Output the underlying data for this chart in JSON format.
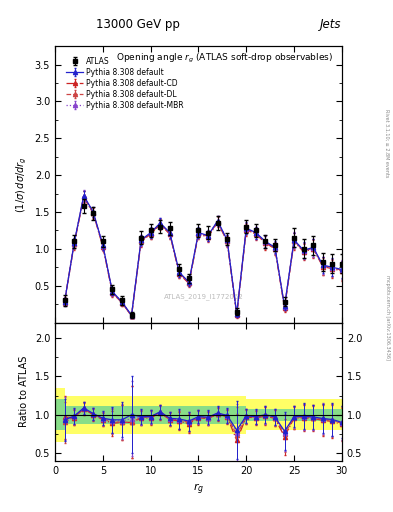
{
  "title_top": "13000 GeV pp",
  "title_right": "Jets",
  "plot_title": "Opening angle $r_g$ (ATLAS soft-drop observables)",
  "ylabel_main": "$(1/\\sigma)\\,d\\sigma/dr_g$",
  "ylabel_ratio": "Ratio to ATLAS",
  "xlabel": "$r_g$",
  "watermark": "ATLAS_2019_I1772062",
  "right_label": "mcplots.cern.ch [arXiv:1306.3436]",
  "rivet_label": "Rivet 3.1.10; ≥ 2.8M events",
  "xdata": [
    1,
    2,
    3,
    4,
    5,
    6,
    7,
    8,
    9,
    10,
    11,
    12,
    13,
    14,
    15,
    16,
    17,
    18,
    19,
    20,
    21,
    22,
    23,
    24,
    25,
    26,
    27,
    28,
    29,
    30
  ],
  "atlas_y": [
    0.3,
    1.1,
    1.58,
    1.48,
    1.1,
    0.45,
    0.3,
    0.1,
    1.15,
    1.25,
    1.3,
    1.28,
    0.72,
    0.6,
    1.25,
    1.22,
    1.35,
    1.13,
    0.15,
    1.3,
    1.25,
    1.1,
    1.05,
    0.28,
    1.15,
    1.0,
    1.05,
    0.82,
    0.8,
    0.8
  ],
  "atlas_yerr": [
    0.07,
    0.09,
    0.09,
    0.09,
    0.08,
    0.06,
    0.06,
    0.04,
    0.09,
    0.09,
    0.09,
    0.09,
    0.07,
    0.06,
    0.09,
    0.09,
    0.09,
    0.08,
    0.05,
    0.09,
    0.09,
    0.09,
    0.08,
    0.06,
    0.13,
    0.13,
    0.13,
    0.12,
    0.13,
    0.13
  ],
  "default_y": [
    0.28,
    1.08,
    1.72,
    1.5,
    1.05,
    0.42,
    0.28,
    0.1,
    1.12,
    1.22,
    1.35,
    1.22,
    0.68,
    0.55,
    1.22,
    1.18,
    1.38,
    1.12,
    0.12,
    1.28,
    1.22,
    1.1,
    1.02,
    0.22,
    1.12,
    0.98,
    1.02,
    0.78,
    0.75,
    0.72
  ],
  "default_yerr": [
    0.05,
    0.07,
    0.07,
    0.07,
    0.06,
    0.05,
    0.04,
    0.03,
    0.07,
    0.07,
    0.07,
    0.07,
    0.06,
    0.05,
    0.07,
    0.07,
    0.07,
    0.07,
    0.04,
    0.08,
    0.08,
    0.08,
    0.08,
    0.05,
    0.1,
    0.11,
    0.11,
    0.11,
    0.12,
    0.12
  ],
  "cd_y": [
    0.29,
    1.06,
    1.7,
    1.48,
    1.03,
    0.4,
    0.27,
    0.09,
    1.1,
    1.2,
    1.33,
    1.2,
    0.66,
    0.53,
    1.2,
    1.16,
    1.36,
    1.1,
    0.1,
    1.26,
    1.2,
    1.08,
    1.0,
    0.2,
    1.1,
    0.96,
    1.0,
    0.76,
    0.73,
    0.7
  ],
  "cd_yerr": [
    0.05,
    0.07,
    0.08,
    0.07,
    0.06,
    0.05,
    0.04,
    0.03,
    0.07,
    0.07,
    0.07,
    0.07,
    0.06,
    0.05,
    0.07,
    0.07,
    0.07,
    0.07,
    0.04,
    0.08,
    0.08,
    0.09,
    0.08,
    0.05,
    0.11,
    0.11,
    0.12,
    0.12,
    0.12,
    0.13
  ],
  "dl_y": [
    0.27,
    1.07,
    1.71,
    1.49,
    1.04,
    0.41,
    0.27,
    0.09,
    1.11,
    1.21,
    1.34,
    1.21,
    0.67,
    0.54,
    1.21,
    1.17,
    1.37,
    1.11,
    0.11,
    1.27,
    1.21,
    1.09,
    1.01,
    0.21,
    1.11,
    0.97,
    1.01,
    0.77,
    0.74,
    0.71
  ],
  "dl_yerr": [
    0.05,
    0.07,
    0.08,
    0.07,
    0.06,
    0.05,
    0.04,
    0.03,
    0.07,
    0.07,
    0.07,
    0.07,
    0.06,
    0.05,
    0.07,
    0.07,
    0.07,
    0.07,
    0.04,
    0.08,
    0.08,
    0.09,
    0.08,
    0.05,
    0.11,
    0.11,
    0.12,
    0.12,
    0.12,
    0.13
  ],
  "mbr_y": [
    0.285,
    1.075,
    1.715,
    1.495,
    1.045,
    0.415,
    0.275,
    0.095,
    1.115,
    1.215,
    1.345,
    1.215,
    0.675,
    0.545,
    1.215,
    1.175,
    1.375,
    1.115,
    0.115,
    1.275,
    1.215,
    1.095,
    1.015,
    0.215,
    1.115,
    0.975,
    1.015,
    0.775,
    0.745,
    0.715
  ],
  "mbr_yerr": [
    0.05,
    0.07,
    0.08,
    0.07,
    0.06,
    0.05,
    0.04,
    0.03,
    0.07,
    0.07,
    0.07,
    0.07,
    0.06,
    0.05,
    0.07,
    0.07,
    0.07,
    0.07,
    0.04,
    0.08,
    0.08,
    0.09,
    0.08,
    0.05,
    0.11,
    0.11,
    0.12,
    0.12,
    0.12,
    0.13
  ],
  "green_band_lo": [
    0.8,
    0.88,
    0.88,
    0.88,
    0.88,
    0.88,
    0.88,
    0.88,
    0.88,
    0.88,
    0.88,
    0.88,
    0.88,
    0.88,
    0.88,
    0.88,
    0.88,
    0.88,
    0.88,
    0.88,
    0.92,
    0.92,
    0.92,
    0.92,
    0.92,
    0.92,
    0.92,
    0.92,
    0.92,
    0.92
  ],
  "green_band_hi": [
    1.2,
    1.12,
    1.12,
    1.12,
    1.12,
    1.12,
    1.12,
    1.12,
    1.12,
    1.12,
    1.12,
    1.12,
    1.12,
    1.12,
    1.12,
    1.12,
    1.12,
    1.12,
    1.12,
    1.12,
    1.08,
    1.08,
    1.08,
    1.08,
    1.08,
    1.08,
    1.08,
    1.08,
    1.08,
    1.08
  ],
  "yellow_band_lo": [
    0.65,
    0.75,
    0.75,
    0.75,
    0.75,
    0.75,
    0.75,
    0.75,
    0.75,
    0.75,
    0.75,
    0.75,
    0.75,
    0.75,
    0.75,
    0.75,
    0.75,
    0.75,
    0.75,
    0.75,
    0.8,
    0.8,
    0.8,
    0.8,
    0.8,
    0.8,
    0.8,
    0.8,
    0.8,
    0.8
  ],
  "yellow_band_hi": [
    1.35,
    1.25,
    1.25,
    1.25,
    1.25,
    1.25,
    1.25,
    1.25,
    1.25,
    1.25,
    1.25,
    1.25,
    1.25,
    1.25,
    1.25,
    1.25,
    1.25,
    1.25,
    1.25,
    1.25,
    1.2,
    1.2,
    1.2,
    1.2,
    1.2,
    1.2,
    1.2,
    1.2,
    1.2,
    1.2
  ],
  "band_edges": [
    0,
    1,
    2,
    3,
    4,
    5,
    6,
    7,
    8,
    9,
    10,
    11,
    12,
    13,
    14,
    15,
    16,
    17,
    18,
    19,
    20,
    21,
    22,
    23,
    24,
    25,
    26,
    27,
    28,
    29,
    30
  ],
  "color_atlas": "#000000",
  "color_default": "#2222cc",
  "color_cd": "#cc2222",
  "color_dl": "#cc4444",
  "color_mbr": "#8844cc",
  "xlim": [
    0,
    30
  ],
  "ylim_main": [
    0.0,
    3.75
  ],
  "ylim_ratio": [
    0.4,
    2.2
  ],
  "yticks_main": [
    0.5,
    1.0,
    1.5,
    2.0,
    2.5,
    3.0,
    3.5
  ],
  "yticks_ratio": [
    0.5,
    1.0,
    1.5,
    2.0
  ],
  "xticks": [
    0,
    5,
    10,
    15,
    20,
    25,
    30
  ]
}
